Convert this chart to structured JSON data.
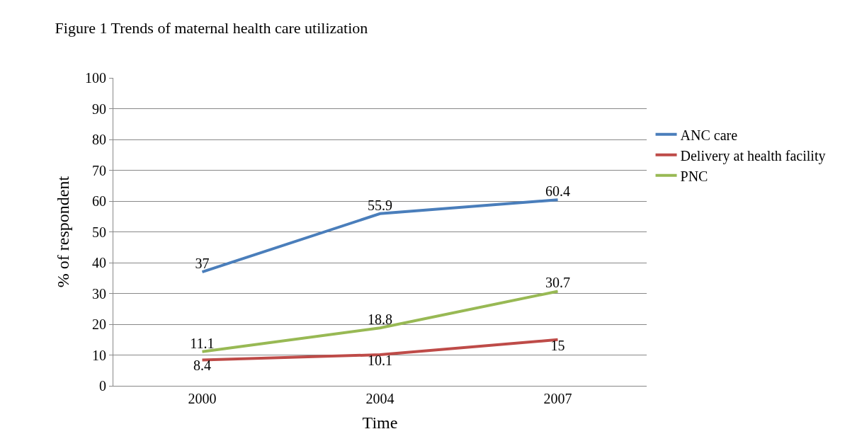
{
  "chart_data": {
    "type": "line",
    "title": "Figure 1 Trends of maternal health care utilization",
    "xlabel": "Time",
    "ylabel": "% of respondent",
    "categories": [
      "2000",
      "2004",
      "2007"
    ],
    "series": [
      {
        "name": "ANC care",
        "color": "#4a7ebb",
        "values": [
          37,
          55.9,
          60.4
        ]
      },
      {
        "name": "Delivery at health facility",
        "color": "#be4b48",
        "values": [
          8.4,
          10.1,
          15
        ]
      },
      {
        "name": "PNC",
        "color": "#98b954",
        "values": [
          11.1,
          18.8,
          30.7
        ]
      }
    ],
    "ylim": [
      0,
      100
    ],
    "yticks": [
      0,
      10,
      20,
      30,
      40,
      50,
      60,
      70,
      80,
      90,
      100
    ],
    "grid": "y",
    "legend": "right",
    "data_labels": true,
    "marker": "none",
    "line_style": "solid"
  }
}
